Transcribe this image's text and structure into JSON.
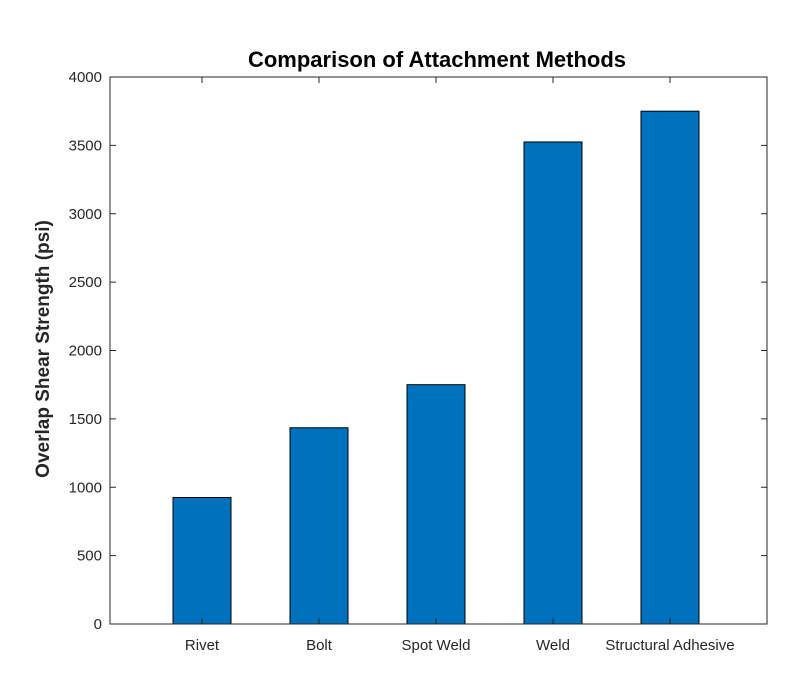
{
  "chart_data": {
    "type": "bar",
    "title": "Comparison of Attachment Methods",
    "xlabel": "",
    "ylabel": "Overlap Shear Strength (psi)",
    "categories": [
      "Rivet",
      "Bolt",
      "Spot Weld",
      "Weld",
      "Structural Adhesive"
    ],
    "values": [
      925,
      1435,
      1750,
      3525,
      3750
    ],
    "ylim": [
      0,
      4000
    ],
    "yticks": [
      0,
      500,
      1000,
      1500,
      2000,
      2500,
      3000,
      3500,
      4000
    ],
    "bar_color": "#0072BD",
    "grid": false,
    "legend": "none"
  }
}
